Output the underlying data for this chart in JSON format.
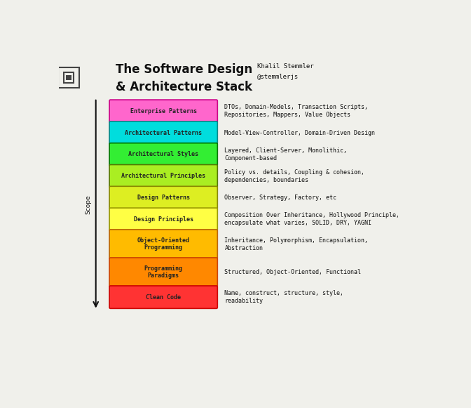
{
  "title_line1": "The Software Design",
  "title_line2": "& Architecture Stack",
  "author_line1": "Khalil Stemmler",
  "author_line2": "@stemmlerjs",
  "bg_color": "#f0f0eb",
  "layers": [
    {
      "label": "Enterprise Patterns",
      "color": "#ff66cc",
      "border_color": "#cc0088",
      "description": "DTOs, Domain-Models, Transaction Scripts,\nRepositories, Mappers, Value Objects",
      "multiline": false
    },
    {
      "label": "Architectural Patterns",
      "color": "#00dddd",
      "border_color": "#008888",
      "description": "Model-View-Controller, Domain-Driven Design",
      "multiline": false
    },
    {
      "label": "Architectural Styles",
      "color": "#33ee33",
      "border_color": "#007700",
      "description": "Layered, Client-Server, Monolithic,\nComponent-based",
      "multiline": false
    },
    {
      "label": "Architectural Principles",
      "color": "#aaee22",
      "border_color": "#557700",
      "description": "Policy vs. details, Coupling & cohesion,\ndependencies, boundaries",
      "multiline": false
    },
    {
      "label": "Design Patterns",
      "color": "#ddee22",
      "border_color": "#888800",
      "description": "Observer, Strategy, Factory, etc",
      "multiline": false
    },
    {
      "label": "Design Principles",
      "color": "#ffff44",
      "border_color": "#999900",
      "description": "Composition Over Inheritance, Hollywood Principle,\nencapsulate what varies, SOLID, DRY, YAGNI",
      "multiline": false
    },
    {
      "label": "Object-Oriented\nProgramming",
      "color": "#ffbb00",
      "border_color": "#bb6600",
      "description": "Inheritance, Polymorphism, Encapsulation,\nAbstraction",
      "multiline": true
    },
    {
      "label": "Programming\nParadigms",
      "color": "#ff8800",
      "border_color": "#cc4400",
      "description": "Structured, Object-Oriented, Functional",
      "multiline": true
    },
    {
      "label": "Clean Code",
      "color": "#ff3333",
      "border_color": "#cc0000",
      "description": "Name, construct, structure, style,\nreadability",
      "multiline": false
    }
  ],
  "scope_label": "Scope"
}
